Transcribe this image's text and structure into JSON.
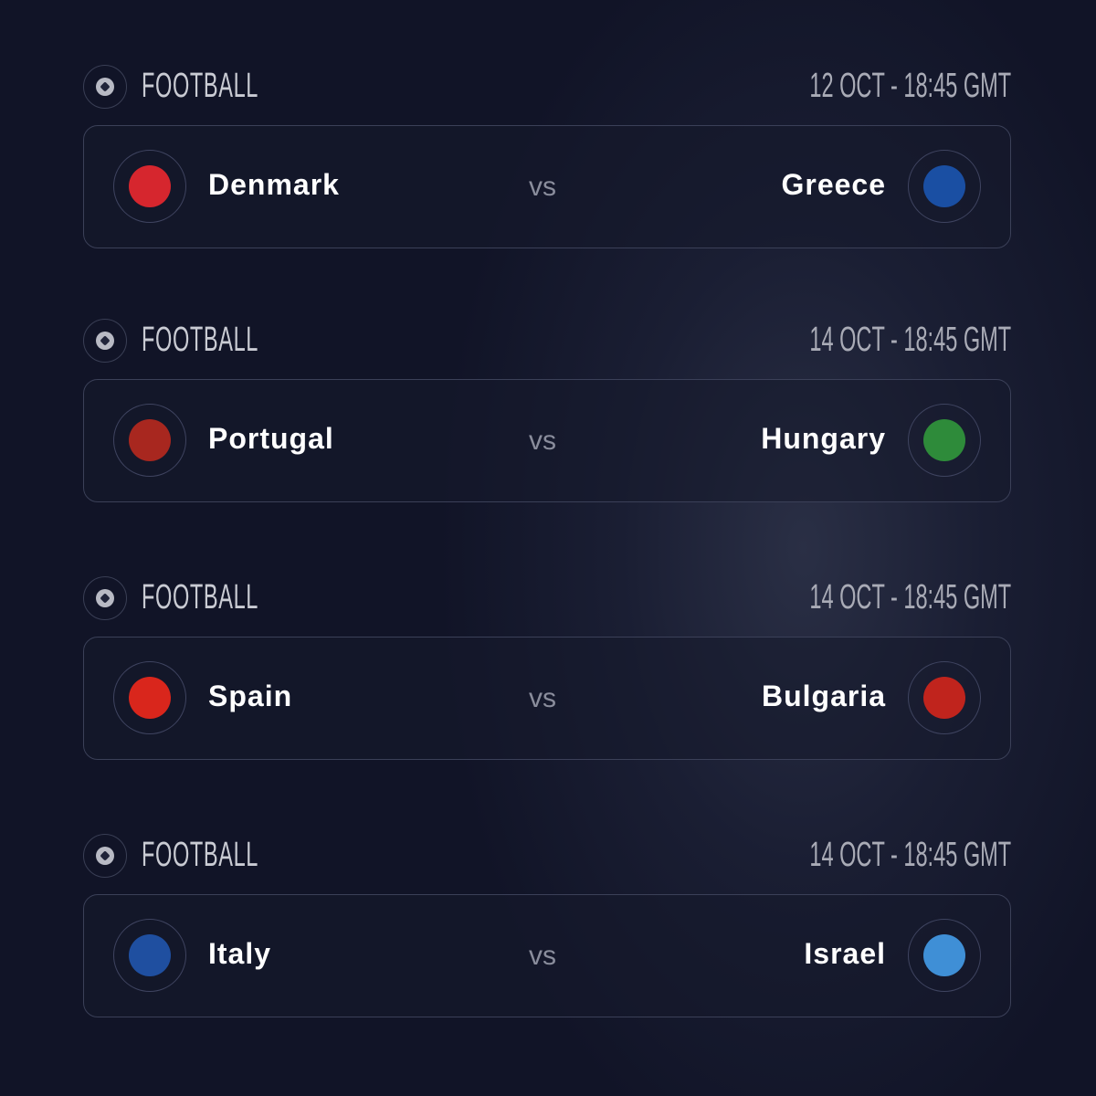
{
  "matches": [
    {
      "sport": "FOOTBALL",
      "date": "12 OCT - 18:45 GMT",
      "home": {
        "name": "Denmark",
        "crest": "dbu-crest",
        "color": "#d6262e"
      },
      "vs": "vs",
      "away": {
        "name": "Greece",
        "crest": "greece-crest",
        "color": "#1a4fa3"
      }
    },
    {
      "sport": "FOOTBALL",
      "date": "14 OCT - 18:45 GMT",
      "home": {
        "name": "Portugal",
        "crest": "portugal-crest",
        "color": "#a8271f"
      },
      "vs": "vs",
      "away": {
        "name": "Hungary",
        "crest": "hungary-crest",
        "color": "#2e8b3a"
      }
    },
    {
      "sport": "FOOTBALL",
      "date": "14 OCT - 18:45 GMT",
      "home": {
        "name": "Spain",
        "crest": "spain-crest",
        "color": "#d9261c"
      },
      "vs": "vs",
      "away": {
        "name": "Bulgaria",
        "crest": "bulgaria-crest",
        "color": "#c0241d"
      }
    },
    {
      "sport": "FOOTBALL",
      "date": "14 OCT - 18:45 GMT",
      "home": {
        "name": "Italy",
        "crest": "italy-crest",
        "color": "#1f4fa0"
      },
      "vs": "vs",
      "away": {
        "name": "Israel",
        "crest": "israel-crest",
        "color": "#3f8fd6"
      }
    }
  ]
}
